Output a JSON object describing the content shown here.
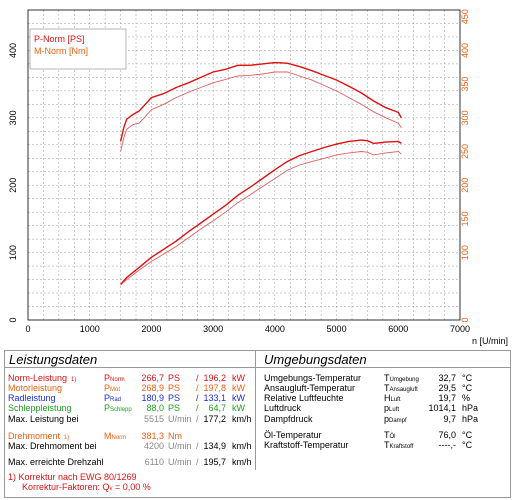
{
  "chart_data": {
    "type": "line",
    "x_unit_label": "n [U/min]",
    "xlim": [
      0,
      7000
    ],
    "ylim_left": [
      0,
      460
    ],
    "ylim_right": [
      0,
      460
    ],
    "x_ticks": [
      "0",
      "1000",
      "2000",
      "3000",
      "4000",
      "5000",
      "6000",
      "7000"
    ],
    "y_ticks_left": [
      "0",
      "100",
      "200",
      "300",
      "400"
    ],
    "y_ticks_right": [
      "0",
      "100",
      "150",
      "200",
      "250",
      "300",
      "350",
      "400",
      "450"
    ],
    "legend": {
      "placement": "top-left",
      "entries": [
        "P-Norm [PS]",
        "M-Norm [Nm]"
      ]
    },
    "series": [
      {
        "name": "P-Norm [PS]",
        "color": "#e01010",
        "axis": "left",
        "x": [
          1500,
          1600,
          1800,
          2000,
          2200,
          2400,
          2600,
          2800,
          3000,
          3200,
          3400,
          3600,
          3800,
          4000,
          4200,
          4400,
          4600,
          4800,
          5000,
          5200,
          5400,
          5500,
          5600,
          5800,
          6000,
          6050
        ],
        "y": [
          53,
          63,
          78,
          93,
          105,
          117,
          131,
          144,
          157,
          170,
          185,
          197,
          210,
          223,
          235,
          244,
          250,
          256,
          261,
          265,
          267,
          266,
          262,
          264,
          265,
          262
        ]
      },
      {
        "name": "",
        "color": "#e06060",
        "axis": "left",
        "x": [
          1500,
          1600,
          1800,
          2000,
          2200,
          2400,
          2600,
          2800,
          3000,
          3200,
          3400,
          3600,
          3800,
          4000,
          4200,
          4400,
          4600,
          4800,
          5000,
          5200,
          5400,
          5500,
          5600,
          5800,
          6000,
          6050
        ],
        "y": [
          52,
          60,
          74,
          87,
          98,
          109,
          122,
          135,
          147,
          160,
          174,
          186,
          198,
          210,
          222,
          230,
          235,
          240,
          245,
          248,
          250,
          249,
          245,
          248,
          250,
          246
        ]
      },
      {
        "name": "M-Norm [Nm]",
        "color": "#e01010",
        "axis": "right",
        "x": [
          1500,
          1550,
          1600,
          1700,
          1800,
          1900,
          2000,
          2200,
          2400,
          2600,
          2800,
          3000,
          3200,
          3400,
          3600,
          3800,
          4000,
          4200,
          4400,
          4600,
          4800,
          5000,
          5200,
          5400,
          5600,
          5800,
          6000,
          6050
        ],
        "y": [
          265,
          285,
          298,
          305,
          310,
          320,
          330,
          336,
          345,
          352,
          360,
          368,
          372,
          378,
          378,
          380,
          382,
          381,
          376,
          370,
          363,
          356,
          347,
          337,
          325,
          315,
          308,
          300
        ]
      },
      {
        "name": "",
        "color": "#e06060",
        "axis": "right",
        "x": [
          1500,
          1550,
          1600,
          1700,
          1800,
          1900,
          2000,
          2200,
          2400,
          2600,
          2800,
          3000,
          3200,
          3400,
          3600,
          3800,
          4000,
          4200,
          4400,
          4600,
          4800,
          5000,
          5200,
          5400,
          5600,
          5800,
          6000,
          6050
        ],
        "y": [
          250,
          270,
          283,
          290,
          292,
          302,
          312,
          320,
          330,
          338,
          345,
          352,
          357,
          362,
          363,
          365,
          368,
          368,
          362,
          356,
          348,
          340,
          330,
          320,
          309,
          300,
          292,
          285
        ]
      }
    ]
  },
  "panel_left": {
    "title": "Leistungsdaten",
    "rows": [
      {
        "label": "Norm-Leistung",
        "mark": "1)",
        "sym": "P",
        "sub": "Norm",
        "v1": "266,7",
        "u1": "PS",
        "sep": "/",
        "v2": "196,2",
        "u2": "kW"
      },
      {
        "label": "Motorleistung",
        "mark": "",
        "sym": "P",
        "sub": "Mot",
        "v1": "268,9",
        "u1": "PS",
        "sep": "/",
        "v2": "197,8",
        "u2": "kW"
      },
      {
        "label": "Radleistung",
        "mark": "",
        "sym": "P",
        "sub": "Rad",
        "v1": "180,9",
        "u1": "PS",
        "sep": "/",
        "v2": "133,1",
        "u2": "kW"
      },
      {
        "label": "Schleppleistung",
        "mark": "",
        "sym": "P",
        "sub": "Schlepp",
        "v1": "88,0",
        "u1": "PS",
        "sep": "/",
        "v2": "64,7",
        "u2": "kW"
      },
      {
        "label": "Max. Leistung bei",
        "mark": "",
        "sym": "",
        "sub": "",
        "v1": "5515",
        "u1": "U/min",
        "sep": "/",
        "v2": "177,2",
        "u2": "km/h"
      },
      {
        "label": "Drehmoment",
        "mark": "1)",
        "sym": "M",
        "sub": "Norm",
        "v1": "381,3",
        "u1": "Nm",
        "sep": "",
        "v2": "",
        "u2": ""
      },
      {
        "label": "Max. Drehmoment bei",
        "mark": "",
        "sym": "",
        "sub": "",
        "v1": "4200",
        "u1": "U/min",
        "sep": "/",
        "v2": "134,9",
        "u2": "km/h"
      },
      {
        "label": "Max. erreichte Drehzahl",
        "mark": "",
        "sym": "",
        "sub": "",
        "v1": "6110",
        "u1": "U/min",
        "sep": "/",
        "v2": "195,7",
        "u2": "km/h"
      }
    ],
    "footnote1": "1) Korrektur nach EWG 80/1269",
    "footnote2_prefix": "Korrektur-Faktoren: Q",
    "footnote2_sub": "v",
    "footnote2_suffix": " =   0,00 %"
  },
  "panel_right": {
    "title": "Umgebungsdaten",
    "rows": [
      {
        "label": "Umgebungs-Temperatur",
        "sym": "T",
        "sub": "Umgebung",
        "value": "32,7",
        "unit": "°C"
      },
      {
        "label": "Ansaugluft-Temperatur",
        "sym": "T",
        "sub": "Ansaugluft",
        "value": "29,5",
        "unit": "°C"
      },
      {
        "label": "Relative Luftfeuchte",
        "sym": "H",
        "sub": "Luft",
        "value": "19,7",
        "unit": "%"
      },
      {
        "label": "Luftdruck",
        "sym": "p",
        "sub": "Luft",
        "value": "1014,1",
        "unit": "hPa"
      },
      {
        "label": "Dampfdruck",
        "sym": "p",
        "sub": "Dampf",
        "value": "9,7",
        "unit": "hPa"
      },
      {
        "label": "Öl-Temperatur",
        "sym": "T",
        "sub": "Öl",
        "value": "76,0",
        "unit": "°C"
      },
      {
        "label": "Kraftstoff-Temperatur",
        "sym": "T",
        "sub": "Kraftstoff",
        "value": "----,-",
        "unit": "°C"
      }
    ]
  },
  "colors": {
    "red": "#e01010",
    "orange": "#ee6010",
    "blue": "#1a2fd0",
    "green": "#20a020",
    "gray": "#888888"
  }
}
